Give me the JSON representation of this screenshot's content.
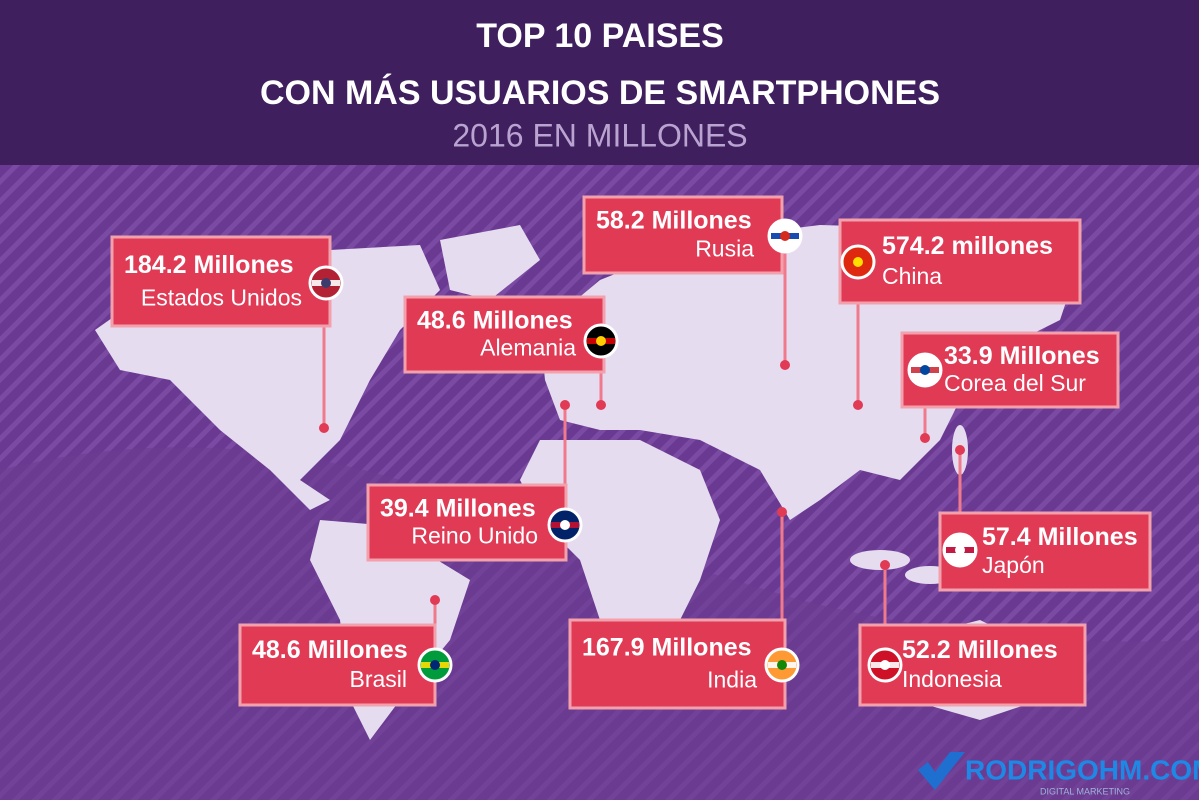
{
  "header": {
    "title_line1": "TOP 10 PAISES",
    "title_line2": "CON MÁS USUARIOS DE SMARTPHONES",
    "subtitle": "2016 EN MILLONES"
  },
  "callouts": [
    {
      "value": "184.2 Millones",
      "country": "Estados Unidos"
    },
    {
      "value": "48.6 Millones",
      "country": "Alemania"
    },
    {
      "value": "58.2 Millones",
      "country": "Rusia"
    },
    {
      "value": "574.2 millones",
      "country": "China"
    },
    {
      "value": "33.9 Millones",
      "country": "Corea del Sur"
    },
    {
      "value": "39.4 Millones",
      "country": "Reino Unido"
    },
    {
      "value": "57.4 Millones",
      "country": "Japón"
    },
    {
      "value": "48.6 Millones",
      "country": "Brasil"
    },
    {
      "value": "167.9 Millones",
      "country": "India"
    },
    {
      "value": "52.2 Millones",
      "country": "Indonesia"
    }
  ],
  "footer": {
    "brand": "RODRIGOHM.COM",
    "tagline": "DIGITAL MARKETING"
  }
}
